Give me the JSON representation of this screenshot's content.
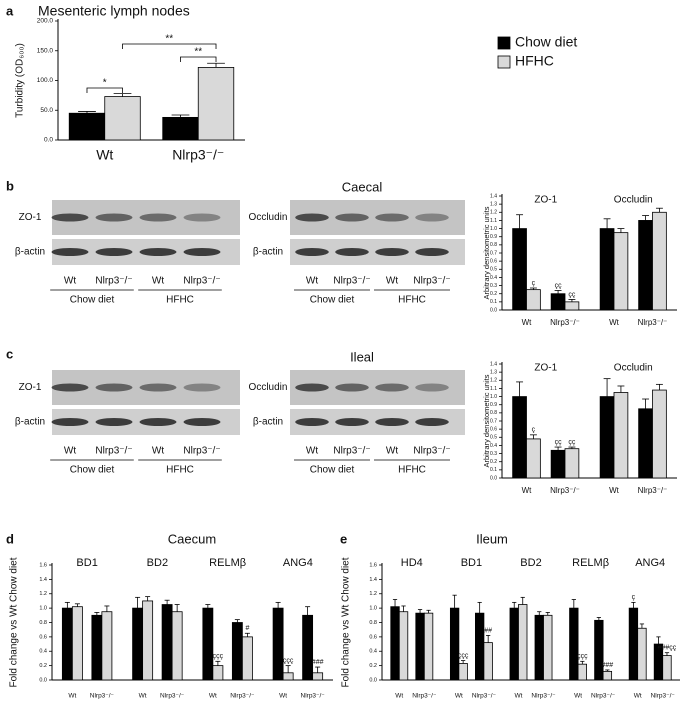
{
  "panel_labels": [
    "a",
    "b",
    "c",
    "d",
    "e"
  ],
  "blots": [
    {
      "title": "Caecal",
      "left": {
        "rows": [
          "ZO-1",
          "β-actin"
        ],
        "lanes": [
          "Wt",
          "Nlrp3⁻/⁻",
          "Wt",
          "Nlrp3⁻/⁻"
        ],
        "groups": [
          "Chow diet",
          "HFHC"
        ]
      },
      "right": {
        "rows": [
          "Occludin",
          "β-actin"
        ],
        "lanes": [
          "Wt",
          "Nlrp3⁻/⁻",
          "Wt",
          "Nlrp3⁻/⁻"
        ],
        "groups": [
          "Chow diet",
          "HFHC"
        ]
      }
    },
    {
      "title": "Ileal",
      "left": {
        "rows": [
          "ZO-1",
          "β-actin"
        ],
        "lanes": [
          "Wt",
          "Nlrp3⁻/⁻",
          "Wt",
          "Nlrp3⁻/⁻"
        ],
        "groups": [
          "Chow diet",
          "HFHC"
        ]
      },
      "right": {
        "rows": [
          "Occludin",
          "β-actin"
        ],
        "lanes": [
          "Wt",
          "Nlrp3⁻/⁻",
          "Wt",
          "Nlrp3⁻/⁻"
        ],
        "groups": [
          "Chow diet",
          "HFHC"
        ]
      }
    }
  ],
  "chart_data": [
    {
      "type": "bar",
      "title": "Mesenteric lymph nodes",
      "y_label": "Turbidity (OD₆₀₀)",
      "categories": [
        "Wt",
        "Nlrp3⁻/⁻"
      ],
      "series": [
        {
          "name": "Chow diet",
          "color": "#000000",
          "values": [
            45,
            38
          ],
          "errors": [
            3,
            4
          ],
          "annotations": [
            null,
            null
          ]
        },
        {
          "name": "HFHC",
          "color": "#d9d9d9",
          "values": [
            73,
            122
          ],
          "errors": [
            5,
            7
          ],
          "annotations": [
            null,
            null
          ]
        }
      ],
      "ylim": [
        0,
        200
      ],
      "yticks": [
        {
          "value": 0,
          "label": "0.0"
        },
        {
          "value": 50,
          "label": "50.0"
        },
        {
          "value": 100,
          "label": "100.0"
        },
        {
          "value": 150,
          "label": "150.0"
        },
        {
          "value": 200,
          "label": "200.0"
        }
      ],
      "brackets": [
        "*",
        "**",
        "**"
      ],
      "legend": "right"
    },
    {
      "type": "bar",
      "y_label": "Arbitrary densitometric units",
      "groups": [
        "ZO-1",
        "Occludin"
      ],
      "categories": [
        "Wt",
        "Nlrp3⁻/⁻",
        "Wt",
        "Nlrp3⁻/⁻"
      ],
      "series": [
        {
          "name": "Chow diet",
          "color": "#000000",
          "values": [
            1.0,
            0.2,
            1.0,
            1.1
          ],
          "errors": [
            0.17,
            0.04,
            0.12,
            0.06
          ],
          "annotations": [
            null,
            "çç",
            null,
            null
          ]
        },
        {
          "name": "HFHC",
          "color": "#d9d9d9",
          "values": [
            0.25,
            0.1,
            0.95,
            1.2
          ],
          "errors": [
            0.02,
            0.03,
            0.05,
            0.05
          ],
          "annotations": [
            "ç",
            "çç",
            null,
            null
          ]
        }
      ],
      "ylim": [
        0,
        1.4
      ],
      "yticks": [
        {
          "value": 0,
          "label": "0.0"
        },
        {
          "value": 0.1,
          "label": "0.1"
        },
        {
          "value": 0.2,
          "label": "0.2"
        },
        {
          "value": 0.3,
          "label": "0.3"
        },
        {
          "value": 0.4,
          "label": "0.4"
        },
        {
          "value": 0.5,
          "label": "0.5"
        },
        {
          "value": 0.6,
          "label": "0.6"
        },
        {
          "value": 0.7,
          "label": "0.7"
        },
        {
          "value": 0.8,
          "label": "0.8"
        },
        {
          "value": 0.9,
          "label": "0.9"
        },
        {
          "value": 1,
          "label": "1.0"
        },
        {
          "value": 1.1,
          "label": "1.1"
        },
        {
          "value": 1.2,
          "label": "1.2"
        },
        {
          "value": 1.3,
          "label": "1.3"
        },
        {
          "value": 1.4,
          "label": "1.4"
        }
      ]
    },
    {
      "type": "bar",
      "y_label": "Arbitrary densitometric units",
      "groups": [
        "ZO-1",
        "Occludin"
      ],
      "categories": [
        "Wt",
        "Nlrp3⁻/⁻",
        "Wt",
        "Nlrp3⁻/⁻"
      ],
      "series": [
        {
          "name": "Chow diet",
          "color": "#000000",
          "values": [
            1.0,
            0.34,
            1.0,
            0.85
          ],
          "errors": [
            0.18,
            0.04,
            0.22,
            0.12
          ],
          "annotations": [
            null,
            "çç",
            null,
            null
          ]
        },
        {
          "name": "HFHC",
          "color": "#d9d9d9",
          "values": [
            0.48,
            0.36,
            1.05,
            1.08
          ],
          "errors": [
            0.05,
            0.02,
            0.08,
            0.07
          ],
          "annotations": [
            "ç",
            "çç",
            null,
            null
          ]
        }
      ],
      "ylim": [
        0,
        1.4
      ],
      "yticks": [
        {
          "value": 0,
          "label": "0.0"
        },
        {
          "value": 0.1,
          "label": "0.1"
        },
        {
          "value": 0.2,
          "label": "0.2"
        },
        {
          "value": 0.3,
          "label": "0.3"
        },
        {
          "value": 0.4,
          "label": "0.4"
        },
        {
          "value": 0.5,
          "label": "0.5"
        },
        {
          "value": 0.6,
          "label": "0.6"
        },
        {
          "value": 0.7,
          "label": "0.7"
        },
        {
          "value": 0.8,
          "label": "0.8"
        },
        {
          "value": 0.9,
          "label": "0.9"
        },
        {
          "value": 1,
          "label": "1.0"
        },
        {
          "value": 1.1,
          "label": "1.1"
        },
        {
          "value": 1.2,
          "label": "1.2"
        },
        {
          "value": 1.3,
          "label": "1.3"
        },
        {
          "value": 1.4,
          "label": "1.4"
        }
      ]
    },
    {
      "type": "bar",
      "title": "Caecum",
      "y_label": "Fold change vs Wt Chow diet",
      "groups": [
        "BD1",
        "BD2",
        "RELMβ",
        "ANG4"
      ],
      "categories": [
        "Wt",
        "Nlrp3⁻/⁻",
        "Wt",
        "Nlrp3⁻/⁻",
        "Wt",
        "Nlrp3⁻/⁻",
        "Wt",
        "Nlrp3⁻/⁻"
      ],
      "series": [
        {
          "name": "Chow diet",
          "color": "#000000",
          "values": [
            1.0,
            0.9,
            1.0,
            1.05,
            1.0,
            0.8,
            1.0,
            0.9
          ],
          "errors": [
            0.08,
            0.04,
            0.15,
            0.06,
            0.05,
            0.04,
            0.08,
            0.12
          ],
          "annotations": [
            null,
            null,
            null,
            null,
            null,
            null,
            null,
            null
          ]
        },
        {
          "name": "HFHC",
          "color": "#d9d9d9",
          "values": [
            1.02,
            0.95,
            1.1,
            0.95,
            0.2,
            0.6,
            0.1,
            0.1
          ],
          "errors": [
            0.04,
            0.08,
            0.06,
            0.1,
            0.06,
            0.05,
            0.1,
            0.08
          ],
          "annotations": [
            null,
            null,
            null,
            null,
            "ççç",
            "#",
            "ççç",
            "###"
          ]
        }
      ],
      "ylim": [
        0,
        1.6
      ],
      "yticks": [
        {
          "value": 0,
          "label": "0.0"
        },
        {
          "value": 0.2,
          "label": "0.2"
        },
        {
          "value": 0.4,
          "label": "0.4"
        },
        {
          "value": 0.6,
          "label": "0.6"
        },
        {
          "value": 0.8,
          "label": "0.8"
        },
        {
          "value": 1,
          "label": "1.0"
        },
        {
          "value": 1.2,
          "label": "1.2"
        },
        {
          "value": 1.4,
          "label": "1.4"
        },
        {
          "value": 1.6,
          "label": "1.6"
        }
      ]
    },
    {
      "type": "bar",
      "title": "Ileum",
      "y_label": "Fold change vs Wt Chow diet",
      "groups": [
        "HD4",
        "BD1",
        "BD2",
        "RELMβ",
        "ANG4"
      ],
      "categories": [
        "Wt",
        "Nlrp3⁻/⁻",
        "Wt",
        "Nlrp3⁻/⁻",
        "Wt",
        "Nlrp3⁻/⁻",
        "Wt",
        "Nlrp3⁻/⁻",
        "Wt",
        "Nlrp3⁻/⁻"
      ],
      "series": [
        {
          "name": "Chow diet",
          "color": "#000000",
          "values": [
            1.02,
            0.93,
            1.0,
            0.93,
            1.0,
            0.9,
            1.0,
            0.83,
            1.0,
            0.5
          ],
          "errors": [
            0.1,
            0.05,
            0.18,
            0.15,
            0.08,
            0.05,
            0.12,
            0.04,
            0.08,
            0.1
          ],
          "annotations": [
            null,
            null,
            null,
            null,
            null,
            null,
            null,
            null,
            "ç",
            null
          ]
        },
        {
          "name": "HFHC",
          "color": "#d9d9d9",
          "values": [
            0.95,
            0.93,
            0.23,
            0.52,
            1.05,
            0.9,
            0.22,
            0.12,
            0.72,
            0.34
          ],
          "errors": [
            0.08,
            0.04,
            0.04,
            0.1,
            0.1,
            0.04,
            0.04,
            0.02,
            0.06,
            0.04
          ],
          "annotations": [
            null,
            null,
            "ççç",
            "##",
            null,
            null,
            "ççç",
            "###",
            null,
            "###çç"
          ]
        }
      ],
      "ylim": [
        0,
        1.6
      ],
      "yticks": [
        {
          "value": 0,
          "label": "0.0"
        },
        {
          "value": 0.2,
          "label": "0.2"
        },
        {
          "value": 0.4,
          "label": "0.4"
        },
        {
          "value": 0.6,
          "label": "0.6"
        },
        {
          "value": 0.8,
          "label": "0.8"
        },
        {
          "value": 1,
          "label": "1.0"
        },
        {
          "value": 1.2,
          "label": "1.2"
        },
        {
          "value": 1.4,
          "label": "1.4"
        },
        {
          "value": 1.6,
          "label": "1.6"
        }
      ]
    }
  ]
}
